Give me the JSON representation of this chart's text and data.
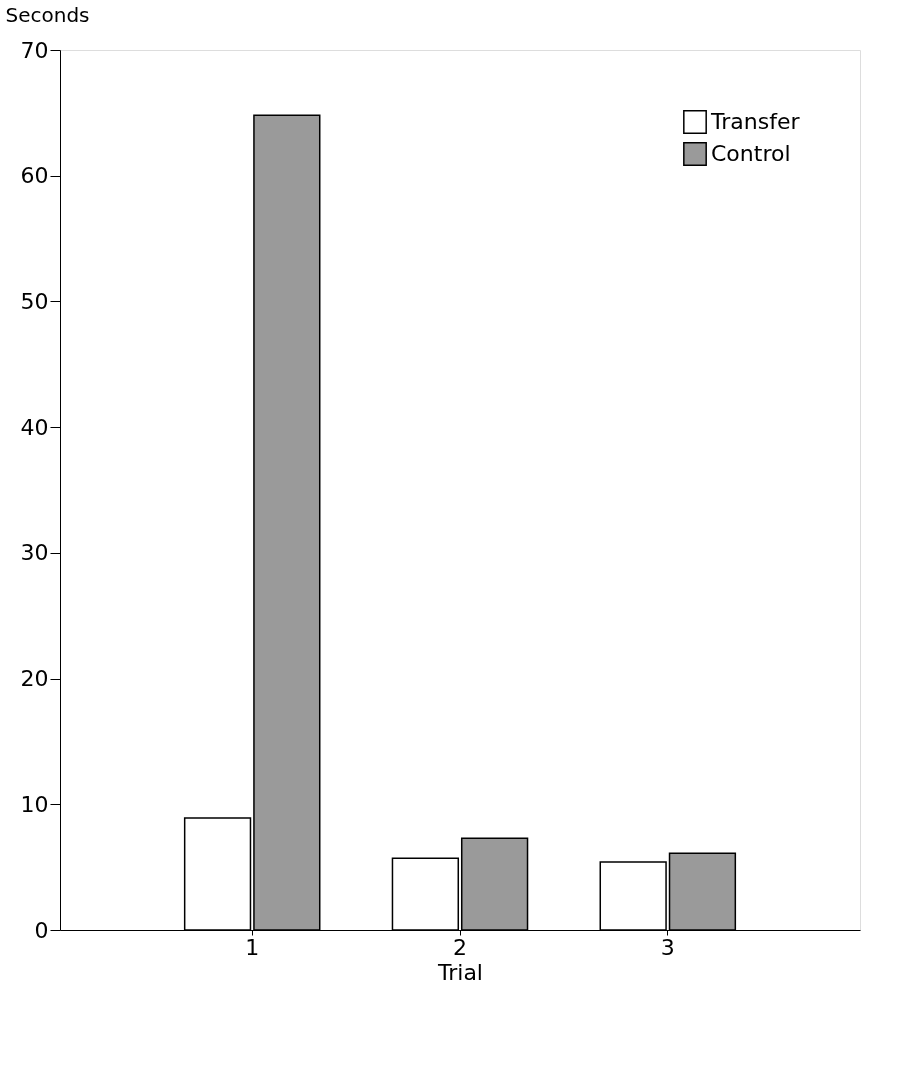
{
  "chart_data": {
    "type": "bar",
    "xlabel": "Trial",
    "ylabel": "Seconds",
    "categories": [
      "1",
      "2",
      "3"
    ],
    "series": [
      {
        "name": "Transfer",
        "color": "#ffffff",
        "values": [
          8.9,
          5.7,
          5.4
        ]
      },
      {
        "name": "Control",
        "color": "#9a9a9a",
        "values": [
          64.8,
          7.3,
          6.1
        ]
      }
    ],
    "ylim": [
      0,
      70
    ],
    "yticks": [
      0,
      10,
      20,
      30,
      40,
      50,
      60,
      70
    ],
    "grid": false,
    "legend": "top right"
  }
}
